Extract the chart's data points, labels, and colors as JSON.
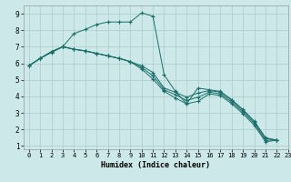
{
  "xlabel": "Humidex (Indice chaleur)",
  "background_color": "#cce8e8",
  "grid_color": "#aacccc",
  "line_color": "#1a6e6a",
  "xlim": [
    -0.5,
    23
  ],
  "ylim": [
    0.8,
    9.5
  ],
  "xticks": [
    0,
    1,
    2,
    3,
    4,
    5,
    6,
    7,
    8,
    9,
    10,
    11,
    12,
    13,
    14,
    15,
    16,
    17,
    18,
    19,
    20,
    21,
    22,
    23
  ],
  "yticks": [
    1,
    2,
    3,
    4,
    5,
    6,
    7,
    8,
    9
  ],
  "lines": [
    [
      5.85,
      6.3,
      6.65,
      7.0,
      7.8,
      8.05,
      8.35,
      8.5,
      8.5,
      8.5,
      9.05,
      8.85,
      5.3,
      4.3,
      3.55,
      4.5,
      4.4,
      4.3,
      3.8,
      3.2,
      2.5,
      1.5,
      1.35
    ],
    [
      5.85,
      6.3,
      6.7,
      7.0,
      6.85,
      6.75,
      6.6,
      6.45,
      6.3,
      6.1,
      5.85,
      5.45,
      4.5,
      4.25,
      3.95,
      4.2,
      4.35,
      4.25,
      3.75,
      3.15,
      2.45,
      1.45,
      1.35
    ],
    [
      5.85,
      6.3,
      6.7,
      7.0,
      6.85,
      6.75,
      6.6,
      6.45,
      6.3,
      6.1,
      5.75,
      5.25,
      4.4,
      4.1,
      3.75,
      3.95,
      4.25,
      4.15,
      3.65,
      3.05,
      2.35,
      1.35,
      1.35
    ],
    [
      5.85,
      6.3,
      6.7,
      7.0,
      6.85,
      6.75,
      6.6,
      6.45,
      6.3,
      6.1,
      5.65,
      5.05,
      4.3,
      3.9,
      3.55,
      3.7,
      4.15,
      4.05,
      3.55,
      2.95,
      2.25,
      1.25,
      1.35
    ]
  ]
}
